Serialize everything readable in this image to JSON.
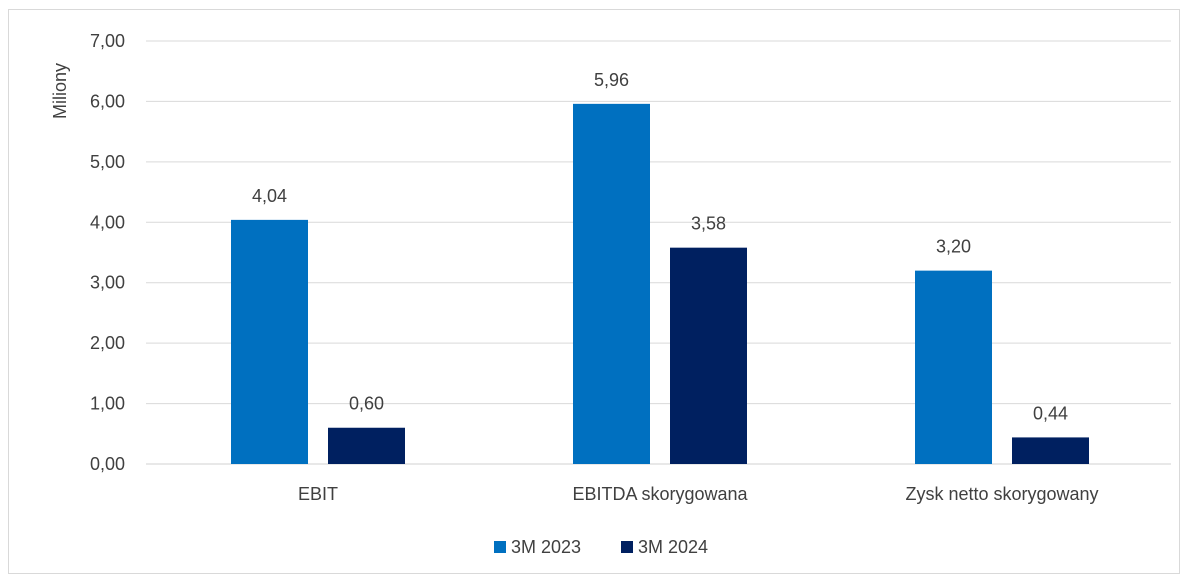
{
  "chart_data": {
    "type": "bar",
    "title": "",
    "xlabel": "",
    "ylabel": "Miliony",
    "ylim": [
      0,
      7
    ],
    "yticks": [
      "0,00",
      "1,00",
      "2,00",
      "3,00",
      "4,00",
      "5,00",
      "6,00",
      "7,00"
    ],
    "categories": [
      "EBIT",
      "EBITDA skorygowana",
      "Zysk netto skorygowany"
    ],
    "series": [
      {
        "name": "3M 2023",
        "values": [
          4.04,
          5.96,
          3.2
        ],
        "labels": [
          "4,04",
          "5,96",
          "3,20"
        ],
        "color": "#0070c0"
      },
      {
        "name": "3M 2024",
        "values": [
          0.6,
          3.58,
          0.44
        ],
        "labels": [
          "0,60",
          "3,58",
          "0,44"
        ],
        "color": "#002060"
      }
    ],
    "grid": true,
    "legend": "bottom-center"
  }
}
